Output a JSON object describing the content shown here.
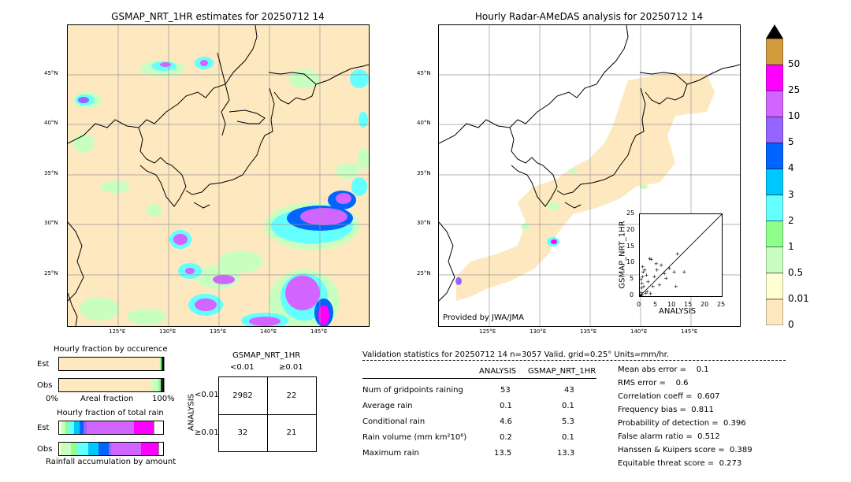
{
  "left_map": {
    "title": "GSMAP_NRT_1HR estimates for 20250712 14",
    "lat_ticks": [
      "45°N",
      "40°N",
      "35°N",
      "30°N",
      "25°N"
    ],
    "lon_ticks": [
      "125°E",
      "130°E",
      "135°E",
      "140°E",
      "145°E"
    ]
  },
  "right_map": {
    "title": "Hourly Radar-AMeDAS analysis for 20250712 14",
    "lat_ticks": [
      "45°N",
      "40°N",
      "35°N",
      "30°N",
      "25°N"
    ],
    "lon_ticks": [
      "125°E",
      "130°E",
      "135°E",
      "140°E",
      "145°E"
    ],
    "credit": "Provided by JWA/JMA"
  },
  "colorbar": {
    "levels": [
      "0",
      "0.01",
      "0.5",
      "1",
      "2",
      "3",
      "4",
      "5",
      "10",
      "25",
      "50"
    ],
    "colors": [
      "#fde8bf",
      "#ffffd2",
      "#c8ffc0",
      "#8dff8a",
      "#64ffff",
      "#00c8ff",
      "#0064ff",
      "#9664ff",
      "#d264ff",
      "#ff00ff",
      "#d29b3c"
    ],
    "extend_color": "#000000"
  },
  "chart_data": [
    {
      "type": "scatter",
      "xlabel": "ANALYSIS",
      "ylabel": "GSMAP_NRT_1HR",
      "xlim": [
        0,
        25
      ],
      "ylim": [
        0,
        25
      ],
      "xticks": [
        "0",
        "5",
        "10",
        "15",
        "20",
        "25"
      ],
      "yticks": [
        "0",
        "5",
        "10",
        "15",
        "20",
        "25"
      ],
      "grid": false,
      "points": [
        [
          0.2,
          0.3
        ],
        [
          0.4,
          1.2
        ],
        [
          0.5,
          2.5
        ],
        [
          0.6,
          4.0
        ],
        [
          0.8,
          6.0
        ],
        [
          1.0,
          7.5
        ],
        [
          1.2,
          3.0
        ],
        [
          0.3,
          5.2
        ],
        [
          1.5,
          8.0
        ],
        [
          0.7,
          0.5
        ],
        [
          2.0,
          6.5
        ],
        [
          2.5,
          4.5
        ],
        [
          3.0,
          11.5
        ],
        [
          3.5,
          11.3
        ],
        [
          4.0,
          3.0
        ],
        [
          4.5,
          6.0
        ],
        [
          5.0,
          10.0
        ],
        [
          5.2,
          8.0
        ],
        [
          6.0,
          3.5
        ],
        [
          6.5,
          9.5
        ],
        [
          7.5,
          7.0
        ],
        [
          8.0,
          5.5
        ],
        [
          9.0,
          8.5
        ],
        [
          10.5,
          7.5
        ],
        [
          11.0,
          3.0
        ],
        [
          11.5,
          13.0
        ],
        [
          13.5,
          7.5
        ],
        [
          1.8,
          1.0
        ],
        [
          0.9,
          9.0
        ],
        [
          2.2,
          1.5
        ],
        [
          3.3,
          0.8
        ],
        [
          0.1,
          0.1
        ]
      ]
    },
    {
      "type": "bar",
      "title": "Hourly fraction by occurence",
      "categories": [
        "Est",
        "Obs"
      ],
      "xlabel": "Areal fraction",
      "xlim_labels": [
        "0%",
        "100%"
      ],
      "rows": [
        {
          "name": "Est",
          "segments": [
            {
              "value": 0.953,
              "color": "#fde8bf"
            },
            {
              "value": 0.012,
              "color": "#c8ffc0"
            },
            {
              "value": 0.015,
              "color": "#8dff8a"
            },
            {
              "value": 0.02,
              "color": "#222222"
            }
          ]
        },
        {
          "name": "Obs",
          "segments": [
            {
              "value": 0.88,
              "color": "#fde8bf"
            },
            {
              "value": 0.07,
              "color": "#c8ffc0"
            },
            {
              "value": 0.02,
              "color": "#8dff8a"
            },
            {
              "value": 0.03,
              "color": "#222222"
            }
          ]
        }
      ]
    },
    {
      "type": "bar",
      "title": "Hourly fraction of total rain",
      "categories": [
        "Est",
        "Obs"
      ],
      "xlabel": "Rainfall accumulation by amount",
      "rows": [
        {
          "name": "Est",
          "segments": [
            {
              "value": 0.03,
              "color": "#ffffd2"
            },
            {
              "value": 0.04,
              "color": "#c8ffc0"
            },
            {
              "value": 0.03,
              "color": "#8dff8a"
            },
            {
              "value": 0.05,
              "color": "#64ffff"
            },
            {
              "value": 0.05,
              "color": "#00c8ff"
            },
            {
              "value": 0.04,
              "color": "#0064ff"
            },
            {
              "value": 0.03,
              "color": "#9664ff"
            },
            {
              "value": 0.45,
              "color": "#d264ff"
            },
            {
              "value": 0.18,
              "color": "#ff00ff"
            }
          ]
        },
        {
          "name": "Obs",
          "segments": [
            {
              "value": 0.02,
              "color": "#ffffd2"
            },
            {
              "value": 0.1,
              "color": "#c8ffc0"
            },
            {
              "value": 0.06,
              "color": "#8dff8a"
            },
            {
              "value": 0.1,
              "color": "#64ffff"
            },
            {
              "value": 0.1,
              "color": "#00c8ff"
            },
            {
              "value": 0.1,
              "color": "#0064ff"
            },
            {
              "value": 0.02,
              "color": "#9664ff"
            },
            {
              "value": 0.28,
              "color": "#d264ff"
            },
            {
              "value": 0.17,
              "color": "#ff00ff"
            }
          ]
        }
      ]
    },
    {
      "type": "table",
      "title": "GSMAP_NRT_1HR",
      "col_headers": [
        "<0.01",
        "≥0.01"
      ],
      "row_axis_label": "ANALYSIS",
      "row_headers": [
        "<0.01",
        "≥0.01"
      ],
      "cells": [
        [
          "2982",
          "22"
        ],
        [
          "32",
          "21"
        ]
      ]
    },
    {
      "type": "table",
      "title": "Validation statistics for 20250712 14  n=3057 Valid. grid=0.25° Units=mm/hr.",
      "col_headers": [
        "ANALYSIS",
        "GSMAP_NRT_1HR"
      ],
      "rows": [
        {
          "label": "Num of gridpoints raining",
          "analysis": "53",
          "gsmap": "43"
        },
        {
          "label": "Average rain",
          "analysis": "0.1",
          "gsmap": "0.1"
        },
        {
          "label": "Conditional rain",
          "analysis": "4.6",
          "gsmap": "5.3"
        },
        {
          "label": "Rain volume (mm km²10⁶)",
          "analysis": "0.2",
          "gsmap": "0.1"
        },
        {
          "label": "Maximum rain",
          "analysis": "13.5",
          "gsmap": "13.3"
        }
      ],
      "scores": [
        "Mean abs error =    0.1",
        "RMS error =    0.6",
        "Correlation coeff =  0.607",
        "Frequency bias =  0.811",
        "Probability of detection =  0.396",
        "False alarm ratio =  0.512",
        "Hanssen & Kuipers score =  0.389",
        "Equitable threat score =  0.273"
      ]
    }
  ]
}
